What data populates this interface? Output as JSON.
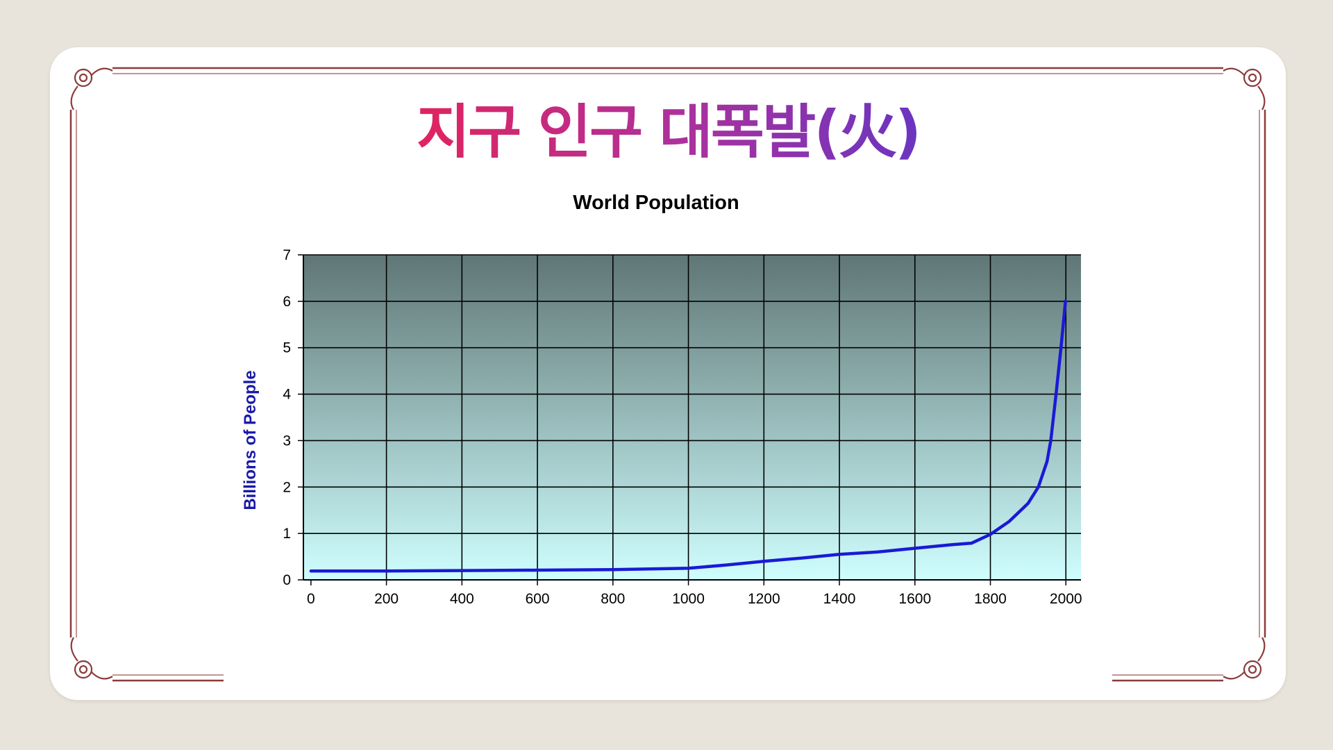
{
  "slide": {
    "title": "지구 인구 대폭발(火)",
    "title_gradient": [
      "#e0245e",
      "#6a35c0"
    ],
    "frame_color": "#8b3a3a"
  },
  "chart_data": {
    "type": "line",
    "title": "World Population",
    "xlabel": "",
    "ylabel": "Billions of People",
    "xlim": [
      -20,
      2040
    ],
    "ylim": [
      0,
      7
    ],
    "x_ticks": [
      "0",
      "200",
      "400",
      "600",
      "800",
      "1000",
      "1200",
      "1400",
      "1600",
      "1800",
      "2000"
    ],
    "y_ticks": [
      "0",
      "1",
      "2",
      "3",
      "4",
      "5",
      "6",
      "7"
    ],
    "grid": true,
    "series": [
      {
        "color": "#1a1ad6",
        "x": [
          0,
          200,
          400,
          600,
          800,
          1000,
          1100,
          1200,
          1300,
          1400,
          1500,
          1600,
          1700,
          1750,
          1800,
          1850,
          1900,
          1927,
          1950,
          1960,
          1974,
          1987,
          1999
        ],
        "y": [
          0.19,
          0.19,
          0.2,
          0.21,
          0.22,
          0.25,
          0.32,
          0.4,
          0.47,
          0.55,
          0.6,
          0.68,
          0.76,
          0.79,
          0.98,
          1.26,
          1.65,
          2.0,
          2.55,
          3.0,
          4.0,
          5.0,
          6.0
        ]
      }
    ],
    "colors": {
      "plot_bg_top": "#5f7675",
      "plot_bg_bottom": "#cffefe",
      "grid": "#000000",
      "axis_title": "#1a1aa8"
    }
  }
}
